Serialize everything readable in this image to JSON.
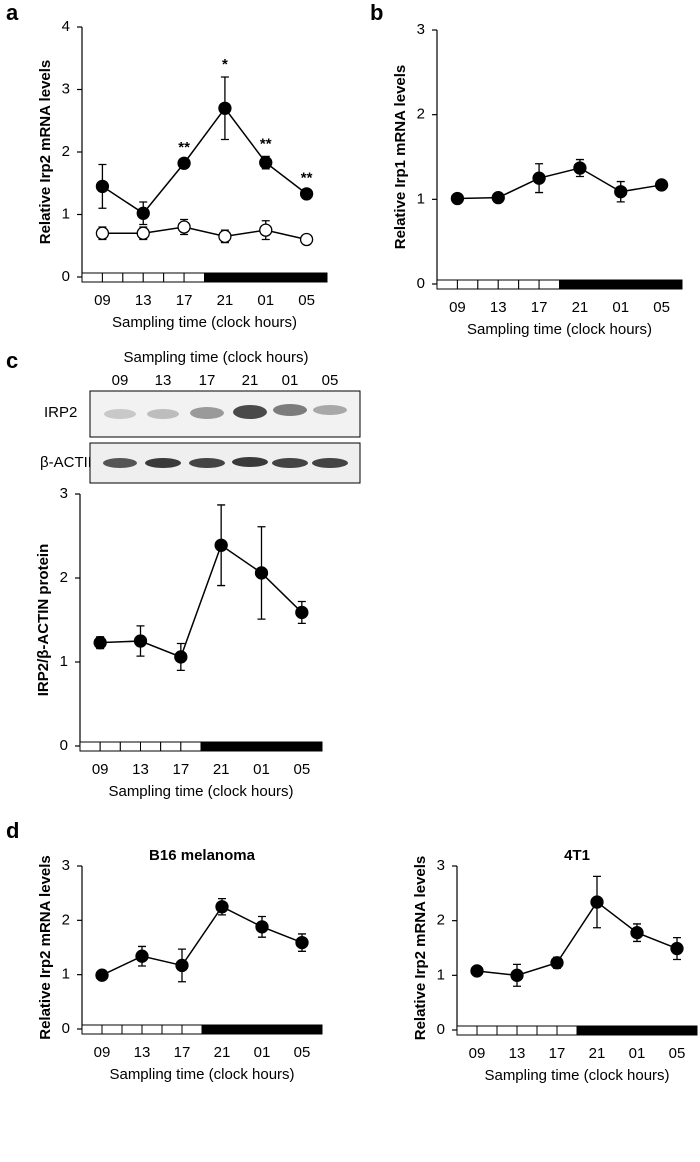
{
  "panel_labels": [
    "a",
    "b",
    "c",
    "d"
  ],
  "blot": {
    "title": "Sampling time (clock hours)",
    "lanes": [
      "09",
      "13",
      "17",
      "21",
      "01",
      "05"
    ],
    "rows": [
      "IRP2",
      "β-ACTIN"
    ]
  },
  "chart_data": [
    {
      "type": "line",
      "ylabel": "Relative Irp2 mRNA levels",
      "xlabel": "Sampling time (clock hours)",
      "categories": [
        "09",
        "13",
        "17",
        "21",
        "01",
        "05"
      ],
      "series": [
        {
          "color": "#000000",
          "fill": "#000000",
          "values": [
            1.45,
            1.02,
            1.82,
            2.7,
            1.83,
            1.33
          ],
          "errors": [
            0.35,
            0.18,
            0.05,
            0.5,
            0.1,
            0.05
          ]
        },
        {
          "color": "#000000",
          "fill": "#ffffff",
          "values": [
            0.7,
            0.7,
            0.8,
            0.65,
            0.75,
            0.6
          ],
          "errors": [
            0.1,
            0.1,
            0.12,
            0.1,
            0.15,
            0.03
          ]
        }
      ],
      "annotations": [
        null,
        null,
        "**",
        "*",
        "**",
        "**"
      ],
      "ylim": [
        0,
        4
      ],
      "yticks": [
        0,
        1,
        2,
        3,
        4
      ]
    },
    {
      "type": "line",
      "ylabel": "Relative Irp1 mRNA levels",
      "xlabel": "Sampling time (clock hours)",
      "categories": [
        "09",
        "13",
        "17",
        "21",
        "01",
        "05"
      ],
      "series": [
        {
          "color": "#000000",
          "fill": "#000000",
          "values": [
            1.01,
            1.02,
            1.25,
            1.37,
            1.09,
            1.17
          ],
          "errors": [
            0.05,
            0.05,
            0.17,
            0.1,
            0.12,
            0.05
          ]
        }
      ],
      "ylim": [
        0,
        3
      ],
      "yticks": [
        0,
        1,
        2,
        3
      ]
    },
    {
      "type": "line",
      "ylabel": "IRP2/β-ACTIN protein",
      "xlabel": "Sampling time (clock hours)",
      "categories": [
        "09",
        "13",
        "17",
        "21",
        "01",
        "05"
      ],
      "series": [
        {
          "color": "#000000",
          "fill": "#000000",
          "values": [
            1.23,
            1.25,
            1.06,
            2.39,
            2.06,
            1.59
          ],
          "errors": [
            0.07,
            0.18,
            0.16,
            0.48,
            0.55,
            0.13
          ]
        }
      ],
      "ylim": [
        0,
        3
      ],
      "yticks": [
        0,
        1,
        2,
        3
      ]
    },
    {
      "type": "line",
      "title": "B16 melanoma",
      "ylabel": "Relative Irp2  mRNA levels",
      "xlabel": "Sampling time (clock hours)",
      "categories": [
        "09",
        "13",
        "17",
        "21",
        "01",
        "05"
      ],
      "series": [
        {
          "color": "#000000",
          "fill": "#000000",
          "values": [
            0.99,
            1.34,
            1.17,
            2.25,
            1.88,
            1.59
          ],
          "errors": [
            0.07,
            0.18,
            0.3,
            0.15,
            0.19,
            0.16
          ]
        }
      ],
      "ylim": [
        0,
        3
      ],
      "yticks": [
        0,
        1,
        2,
        3
      ]
    },
    {
      "type": "line",
      "title": "4T1",
      "ylabel": "Relative Irp2  mRNA levels",
      "xlabel": "Sampling time (clock hours)",
      "categories": [
        "09",
        "13",
        "17",
        "21",
        "01",
        "05"
      ],
      "series": [
        {
          "color": "#000000",
          "fill": "#000000",
          "values": [
            1.08,
            1.0,
            1.23,
            2.34,
            1.78,
            1.49
          ],
          "errors": [
            0.05,
            0.2,
            0.1,
            0.47,
            0.16,
            0.2
          ]
        }
      ],
      "ylim": [
        0,
        3
      ],
      "yticks": [
        0,
        1,
        2,
        3
      ]
    }
  ]
}
